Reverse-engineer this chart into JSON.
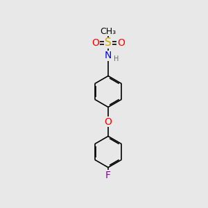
{
  "bg_color": "#e8e8e8",
  "line_color": "#000000",
  "line_width": 1.2,
  "atom_colors": {
    "S": "#ccaa00",
    "O": "#ff0000",
    "N": "#0000ff",
    "F": "#8800aa",
    "H": "#666666",
    "C": "#000000"
  },
  "font_size": 9,
  "small_font_size": 7,
  "fig_width": 3.0,
  "fig_height": 3.0,
  "dpi": 100,
  "xlim": [
    0,
    10
  ],
  "ylim": [
    0,
    10
  ]
}
